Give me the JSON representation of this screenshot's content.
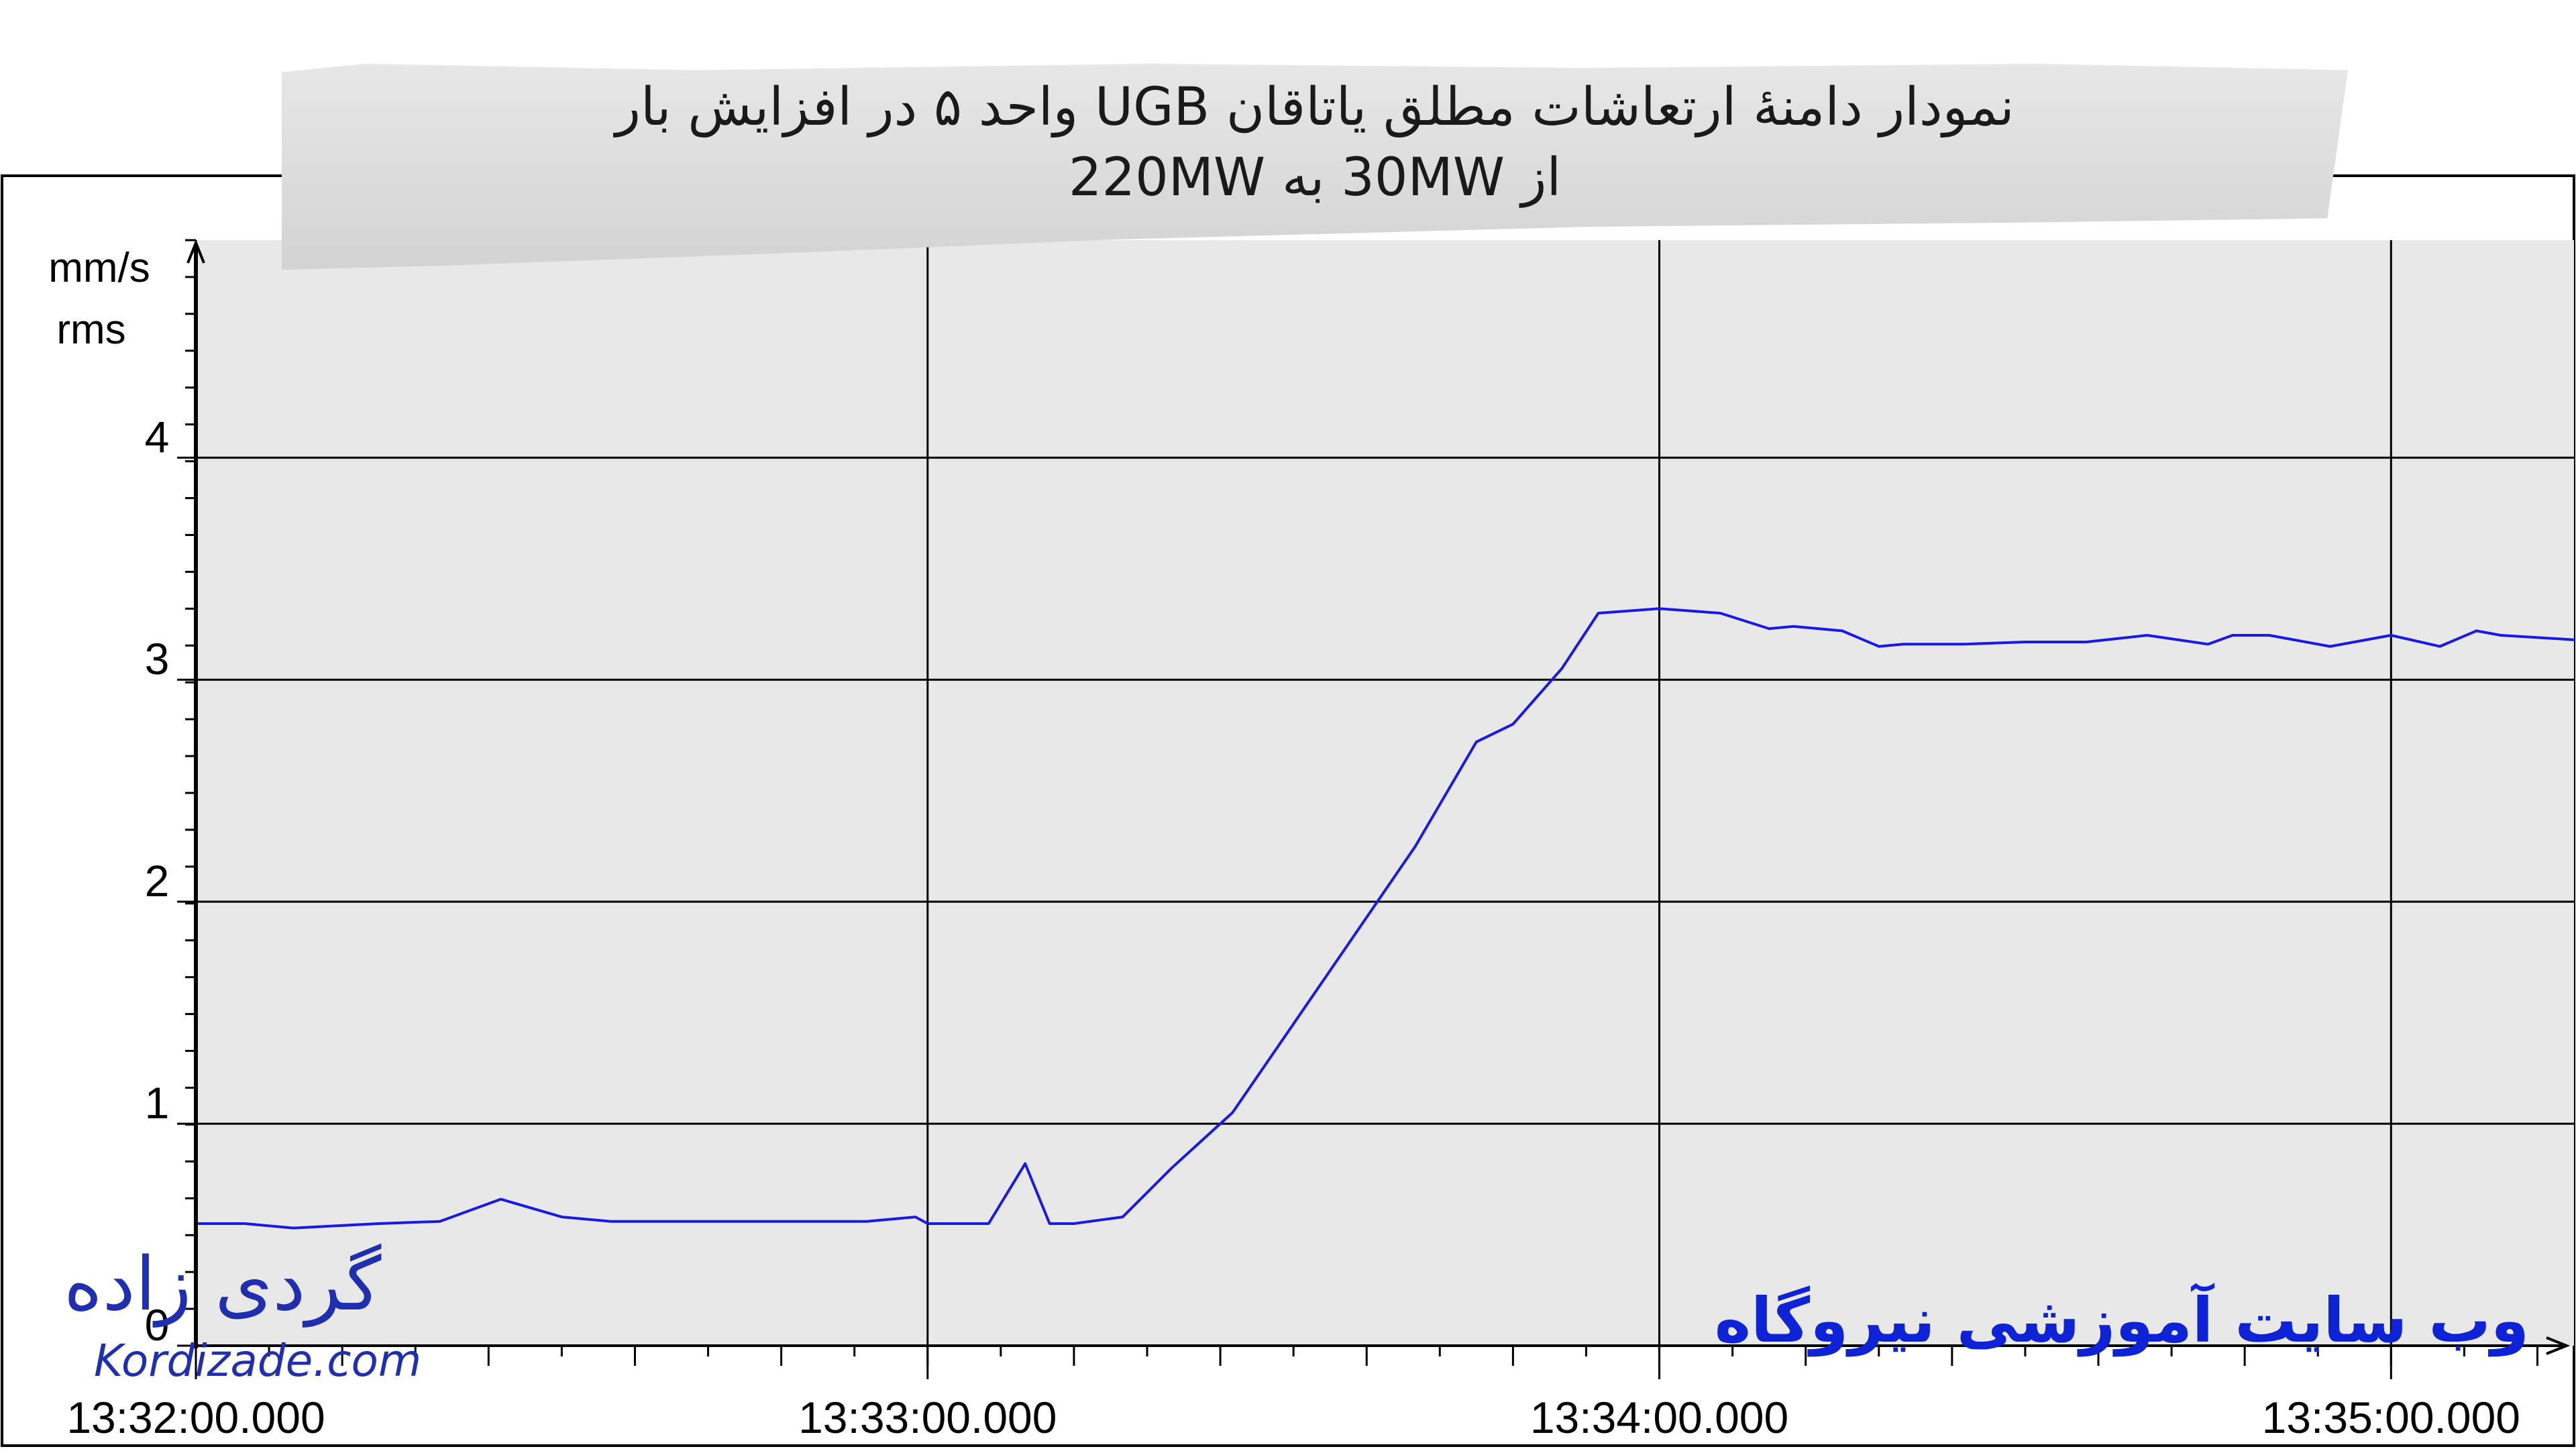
{
  "title_line1": "نمودار دامنهٔ ارتعاشات مطلق یاتاقان UGB واحد ۵ در افزایش بار",
  "title_line2": "از 30MW به 220MW",
  "logo_text_fa": "گردی زاده",
  "logo_text_en": "Kordizade.com",
  "site_text_fa": "وب سایت آموزشی نیروگاه",
  "colors": {
    "series": "#1a1ae6",
    "plot_bg": "#e9e8e8",
    "grid": "#000000",
    "logo": "#1f2fb0"
  },
  "chart_data": {
    "type": "line",
    "ylabel_line1": "mm/s",
    "ylabel_line2": "rms",
    "ylim": [
      0,
      4.98
    ],
    "y_ticks": [
      0,
      1,
      2,
      3,
      4
    ],
    "xlim": [
      "13:32:00.000",
      "13:35:15.000"
    ],
    "x_ticks": [
      "13:32:00.000",
      "13:33:00.000",
      "13:34:00.000",
      "13:35:00.000"
    ],
    "grid": true,
    "series": [
      {
        "x": [
          "13:32:00",
          "13:32:04",
          "13:32:08",
          "13:32:15",
          "13:32:20",
          "13:32:25",
          "13:32:30",
          "13:32:34",
          "13:32:40",
          "13:32:45",
          "13:32:50",
          "13:32:55",
          "13:32:59",
          "13:33:00",
          "13:33:02",
          "13:33:05",
          "13:33:08",
          "13:33:10",
          "13:33:12",
          "13:33:16",
          "13:33:20",
          "13:33:25",
          "13:33:30",
          "13:33:35",
          "13:33:40",
          "13:33:45",
          "13:33:48",
          "13:33:52",
          "13:33:55",
          "13:34:00",
          "13:34:05",
          "13:34:09",
          "13:34:11",
          "13:34:15",
          "13:34:18",
          "13:34:20",
          "13:34:25",
          "13:34:30",
          "13:34:35",
          "13:34:40",
          "13:34:45",
          "13:34:47",
          "13:34:50",
          "13:34:55",
          "13:35:00",
          "13:35:04",
          "13:35:07",
          "13:35:09",
          "13:35:15"
        ],
        "y": [
          0.55,
          0.55,
          0.53,
          0.55,
          0.56,
          0.66,
          0.58,
          0.56,
          0.56,
          0.56,
          0.56,
          0.56,
          0.58,
          0.55,
          0.55,
          0.55,
          0.82,
          0.55,
          0.55,
          0.58,
          0.8,
          1.05,
          1.45,
          1.85,
          2.25,
          2.72,
          2.8,
          3.05,
          3.3,
          3.32,
          3.3,
          3.23,
          3.24,
          3.22,
          3.15,
          3.16,
          3.16,
          3.17,
          3.17,
          3.2,
          3.16,
          3.2,
          3.2,
          3.15,
          3.2,
          3.15,
          3.22,
          3.2,
          3.18
        ]
      }
    ]
  }
}
